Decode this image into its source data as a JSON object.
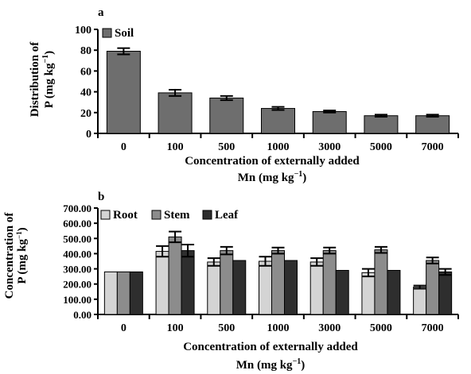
{
  "chart_data": [
    {
      "panel_label": "a",
      "type": "bar",
      "categories": [
        "0",
        "100",
        "500",
        "1000",
        "3000",
        "5000",
        "7000"
      ],
      "series": [
        {
          "name": "Soil",
          "values": [
            79,
            39,
            34,
            24,
            21,
            17,
            17
          ],
          "errors": [
            3,
            3,
            2,
            1.5,
            1,
            1,
            1
          ]
        }
      ],
      "ylim": [
        0,
        100
      ],
      "yticks": [
        "0",
        "20",
        "40",
        "60",
        "80",
        "100"
      ],
      "ylabel_line1": "Distribution of",
      "ylabel_line2": "P (mg kg",
      "ylabel_sup": "−1",
      "ylabel_close": ")",
      "xlabel_line1": "Concentration of externally added",
      "xlabel_line2": "Mn (mg kg",
      "xlabel_sup": "−1",
      "xlabel_close": ")",
      "legend_position": "top-left",
      "colors": {
        "Soil": "#6e6e6e"
      }
    },
    {
      "panel_label": "b",
      "type": "bar",
      "categories": [
        "0",
        "100",
        "500",
        "1000",
        "3000",
        "5000",
        "7000"
      ],
      "series": [
        {
          "name": "Root",
          "values": [
            280,
            415,
            345,
            350,
            345,
            275,
            180
          ],
          "errors": [
            0,
            35,
            25,
            30,
            25,
            25,
            10
          ]
        },
        {
          "name": "Stem",
          "values": [
            280,
            510,
            420,
            420,
            420,
            425,
            355
          ],
          "errors": [
            0,
            35,
            25,
            20,
            20,
            20,
            20
          ]
        },
        {
          "name": "Leaf",
          "values": [
            280,
            420,
            355,
            355,
            290,
            290,
            280
          ],
          "errors": [
            0,
            40,
            0,
            0,
            0,
            0,
            20
          ]
        }
      ],
      "ylim": [
        0,
        700
      ],
      "yticks": [
        "0.00",
        "100.00",
        "200.00",
        "300.00",
        "400.00",
        "500.00",
        "600.00",
        "700.00"
      ],
      "ylabel_line1": "Concentration of",
      "ylabel_line2": "P (mg kg",
      "ylabel_sup": "−1",
      "ylabel_close": ")",
      "xlabel_line1": "Concentration of externally added",
      "xlabel_line2": "Mn (mg kg",
      "xlabel_sup": "−1",
      "xlabel_close": ")",
      "legend_position": "top-left",
      "colors": {
        "Root": "#d4d4d4",
        "Stem": "#8c8c8c",
        "Leaf": "#2e2e2e"
      }
    }
  ]
}
